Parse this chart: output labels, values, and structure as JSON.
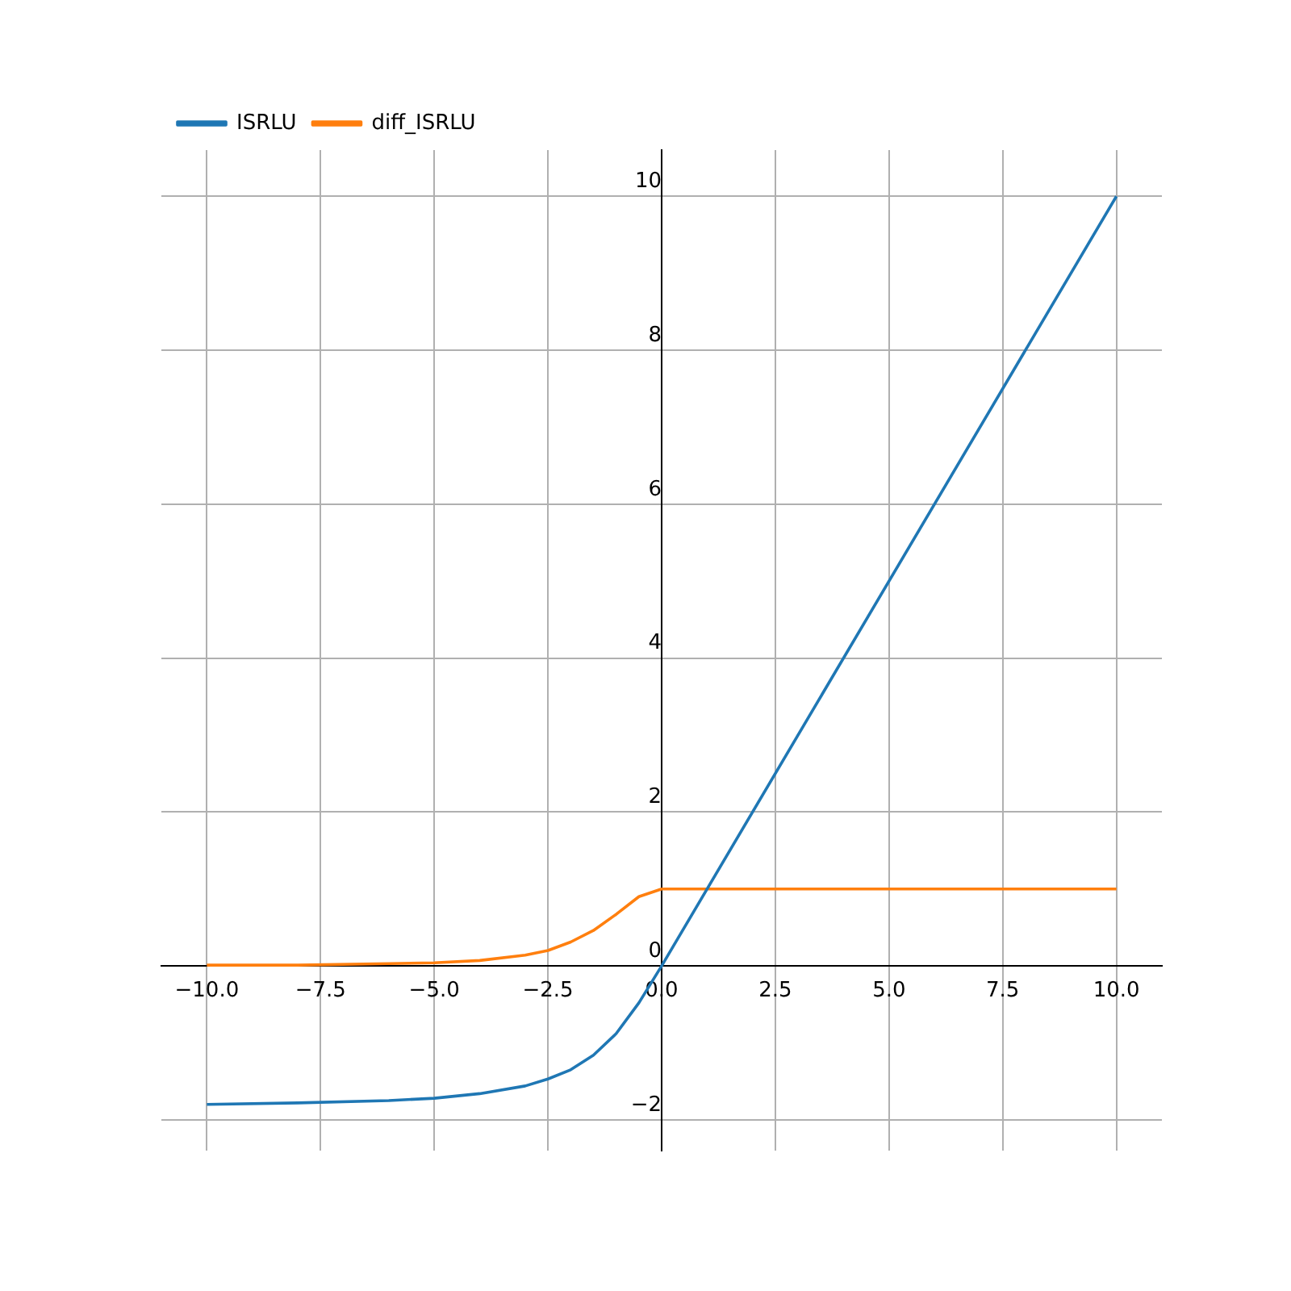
{
  "chart_data": {
    "type": "line",
    "x": [
      -10,
      -8,
      -6,
      -5,
      -4,
      -3,
      -2.5,
      -2,
      -1.5,
      -1,
      -0.5,
      0,
      10
    ],
    "series": [
      {
        "name": "ISRLU",
        "color": "#1f77b4",
        "values": [
          -1.8,
          -1.78,
          -1.75,
          -1.72,
          -1.66,
          -1.56,
          -1.47,
          -1.35,
          -1.16,
          -0.88,
          -0.48,
          0,
          10
        ]
      },
      {
        "name": "diff_ISRLU",
        "color": "#ff7f0e",
        "values": [
          0.01,
          0.01,
          0.03,
          0.04,
          0.07,
          0.14,
          0.2,
          0.31,
          0.46,
          0.67,
          0.9,
          1,
          1
        ]
      }
    ],
    "xlim": [
      -11,
      11
    ],
    "xticks": [
      {
        "value": -10,
        "label": "−10.0"
      },
      {
        "value": -7.5,
        "label": "−7.5"
      },
      {
        "value": -5,
        "label": "−5.0"
      },
      {
        "value": -2.5,
        "label": "−2.5"
      },
      {
        "value": 0,
        "label": "0.0"
      },
      {
        "value": 2.5,
        "label": "2.5"
      },
      {
        "value": 5,
        "label": "5.0"
      },
      {
        "value": 7.5,
        "label": "7.5"
      },
      {
        "value": 10,
        "label": "10.0"
      }
    ],
    "ylim": [
      -2.4,
      10.6
    ],
    "yticks": [
      {
        "value": -2,
        "label": "−2"
      },
      0,
      2,
      4,
      6,
      8,
      10
    ],
    "grid": true,
    "legend": "top left",
    "marker": "none"
  }
}
